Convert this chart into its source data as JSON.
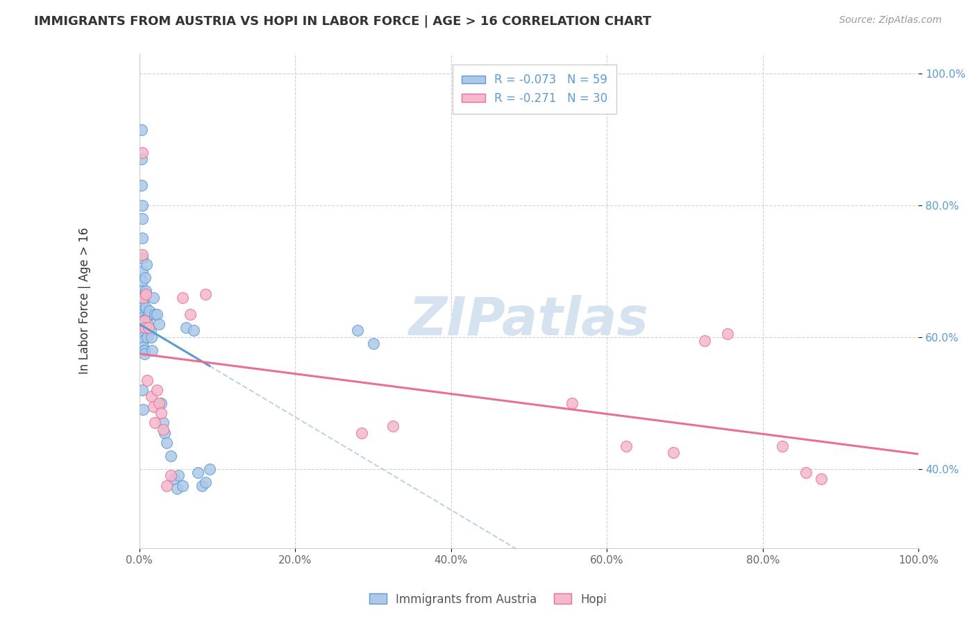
{
  "title": "IMMIGRANTS FROM AUSTRIA VS HOPI IN LABOR FORCE | AGE > 16 CORRELATION CHART",
  "source": "Source: ZipAtlas.com",
  "ylabel": "In Labor Force | Age > 16",
  "legend_label1": "Immigrants from Austria",
  "legend_label2": "Hopi",
  "R1": -0.073,
  "N1": 59,
  "R2": -0.271,
  "N2": 30,
  "color1": "#adc8e8",
  "color2": "#f5b8cc",
  "line_color1": "#5b9bd5",
  "line_color2": "#e87090",
  "dash_color": "#b0c8e0",
  "xlim": [
    0.0,
    1.0
  ],
  "ylim": [
    0.28,
    1.03
  ],
  "xticks": [
    0.0,
    0.2,
    0.4,
    0.6,
    0.8,
    1.0
  ],
  "xticklabels": [
    "0.0%",
    "20.0%",
    "40.0%",
    "60.0%",
    "80.0%",
    "100.0%"
  ],
  "yticks": [
    0.4,
    0.6,
    0.8,
    1.0
  ],
  "yticklabels": [
    "40.0%",
    "60.0%",
    "80.0%",
    "100.0%"
  ],
  "watermark": "ZIPatlas",
  "watermark_color": "#d5e3f0",
  "austria_x": [
    0.003,
    0.003,
    0.004,
    0.004,
    0.004,
    0.004,
    0.004,
    0.004,
    0.004,
    0.004,
    0.005,
    0.005,
    0.005,
    0.005,
    0.005,
    0.005,
    0.005,
    0.005,
    0.005,
    0.005,
    0.005,
    0.006,
    0.006,
    0.007,
    0.008,
    0.008,
    0.009,
    0.01,
    0.01,
    0.011,
    0.012,
    0.013,
    0.014,
    0.015,
    0.016,
    0.018,
    0.02,
    0.022,
    0.025,
    0.028,
    0.03,
    0.032,
    0.035,
    0.04,
    0.045,
    0.048,
    0.05,
    0.055,
    0.06,
    0.07,
    0.075,
    0.08,
    0.085,
    0.09,
    0.28,
    0.3,
    0.003,
    0.004,
    0.005
  ],
  "austria_y": [
    0.87,
    0.83,
    0.8,
    0.78,
    0.75,
    0.72,
    0.7,
    0.685,
    0.67,
    0.66,
    0.655,
    0.645,
    0.64,
    0.635,
    0.63,
    0.625,
    0.62,
    0.61,
    0.6,
    0.595,
    0.585,
    0.58,
    0.575,
    0.69,
    0.67,
    0.645,
    0.71,
    0.63,
    0.6,
    0.62,
    0.635,
    0.64,
    0.61,
    0.6,
    0.58,
    0.66,
    0.635,
    0.635,
    0.62,
    0.5,
    0.47,
    0.455,
    0.44,
    0.42,
    0.385,
    0.37,
    0.39,
    0.375,
    0.615,
    0.61,
    0.395,
    0.375,
    0.38,
    0.4,
    0.61,
    0.59,
    0.915,
    0.52,
    0.49
  ],
  "hopi_x": [
    0.004,
    0.004,
    0.005,
    0.006,
    0.007,
    0.008,
    0.01,
    0.012,
    0.015,
    0.018,
    0.02,
    0.022,
    0.025,
    0.028,
    0.03,
    0.035,
    0.04,
    0.055,
    0.065,
    0.085,
    0.285,
    0.325,
    0.555,
    0.625,
    0.685,
    0.725,
    0.755,
    0.825,
    0.855,
    0.875
  ],
  "hopi_y": [
    0.88,
    0.725,
    0.66,
    0.625,
    0.615,
    0.665,
    0.535,
    0.615,
    0.51,
    0.495,
    0.47,
    0.52,
    0.5,
    0.485,
    0.46,
    0.375,
    0.39,
    0.66,
    0.635,
    0.665,
    0.455,
    0.465,
    0.5,
    0.435,
    0.425,
    0.595,
    0.605,
    0.435,
    0.395,
    0.385
  ]
}
